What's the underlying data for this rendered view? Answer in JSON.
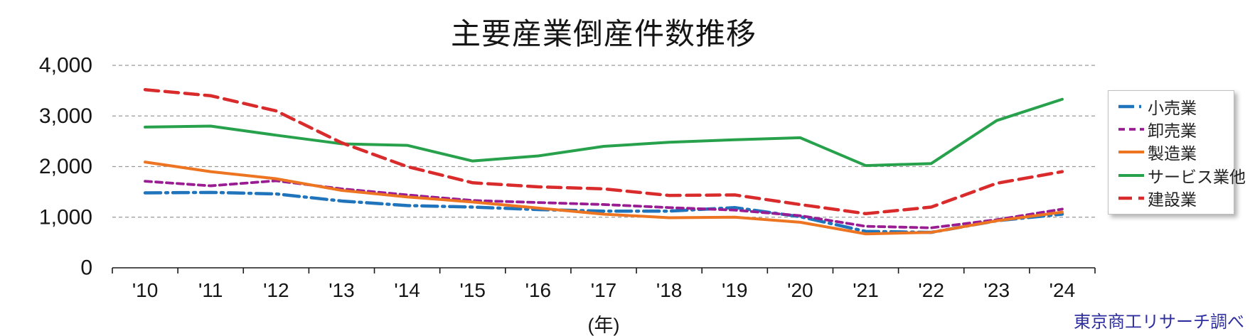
{
  "chart_data": {
    "type": "line",
    "title": "主要産業倒産件数推移",
    "xlabel": "(年)",
    "source": "東京商工リサーチ調べ",
    "source_color": "#2e2e9f",
    "categories": [
      "'10",
      "'11",
      "'12",
      "'13",
      "'14",
      "'15",
      "'16",
      "'17",
      "'18",
      "'19",
      "'20",
      "'21",
      "'22",
      "'23",
      "'24"
    ],
    "series": [
      {
        "name": "小売業",
        "color": "#2074bc",
        "style": "dashdot",
        "values": [
          1480,
          1490,
          1460,
          1320,
          1230,
          1200,
          1150,
          1120,
          1120,
          1190,
          1010,
          720,
          700,
          930,
          1060
        ]
      },
      {
        "name": "卸売業",
        "color": "#991c93",
        "style": "dashed",
        "values": [
          1710,
          1620,
          1720,
          1560,
          1440,
          1330,
          1290,
          1250,
          1190,
          1140,
          1030,
          820,
          790,
          950,
          1160
        ]
      },
      {
        "name": "製造業",
        "color": "#ed7420",
        "style": "solid",
        "values": [
          2090,
          1900,
          1760,
          1530,
          1400,
          1300,
          1180,
          1060,
          990,
          1000,
          900,
          670,
          700,
          930,
          1100
        ]
      },
      {
        "name": "サービス業他",
        "color": "#27a14b",
        "style": "solid",
        "values": [
          2780,
          2800,
          2620,
          2450,
          2420,
          2110,
          2210,
          2400,
          2480,
          2530,
          2570,
          2020,
          2060,
          2910,
          3330
        ]
      },
      {
        "name": "建設業",
        "color": "#d92b2b",
        "style": "dashed-long",
        "values": [
          3520,
          3400,
          3100,
          2470,
          2000,
          1680,
          1600,
          1560,
          1430,
          1440,
          1250,
          1070,
          1200,
          1670,
          1900
        ]
      }
    ],
    "ylim": [
      0,
      4000
    ],
    "yticks": [
      {
        "value": 0,
        "label": "0"
      },
      {
        "value": 1000,
        "label": "1,000"
      },
      {
        "value": 2000,
        "label": "2,000"
      },
      {
        "value": 3000,
        "label": "3,000"
      },
      {
        "value": 4000,
        "label": "4,000"
      }
    ],
    "grid": "horizontal-dashed",
    "legend_position": "right"
  }
}
